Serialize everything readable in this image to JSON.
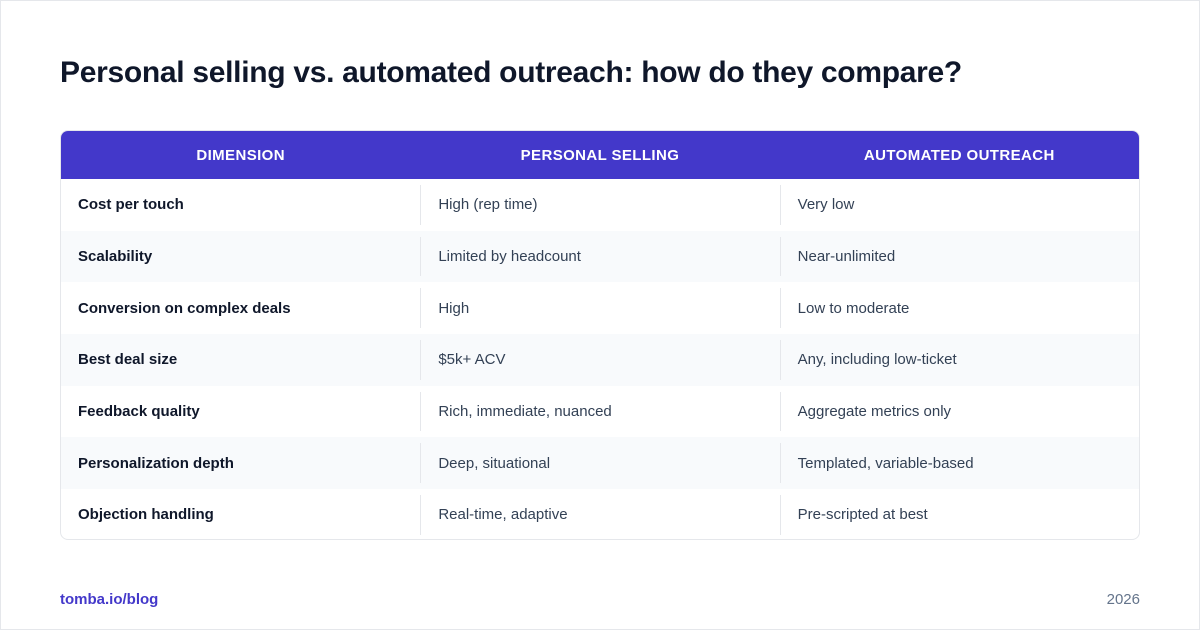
{
  "title": "Personal selling vs. automated outreach: how do they compare?",
  "colors": {
    "header_bg": "#4338ca",
    "alt_row_bg": "#f8fafc",
    "link": "#4338ca"
  },
  "table": {
    "headers": [
      "DIMENSION",
      "PERSONAL SELLING",
      "AUTOMATED OUTREACH"
    ],
    "rows": [
      [
        "Cost per touch",
        "High (rep time)",
        "Very low"
      ],
      [
        "Scalability",
        "Limited by headcount",
        "Near-unlimited"
      ],
      [
        "Conversion on complex deals",
        "High",
        "Low to moderate"
      ],
      [
        "Best deal size",
        "$5k+ ACV",
        "Any, including low-ticket"
      ],
      [
        "Feedback quality",
        "Rich, immediate, nuanced",
        "Aggregate metrics only"
      ],
      [
        "Personalization depth",
        "Deep, situational",
        "Templated, variable-based"
      ],
      [
        "Objection handling",
        "Real-time, adaptive",
        "Pre-scripted at best"
      ]
    ]
  },
  "footer": {
    "link": "tomba.io/blog",
    "year": "2026"
  }
}
